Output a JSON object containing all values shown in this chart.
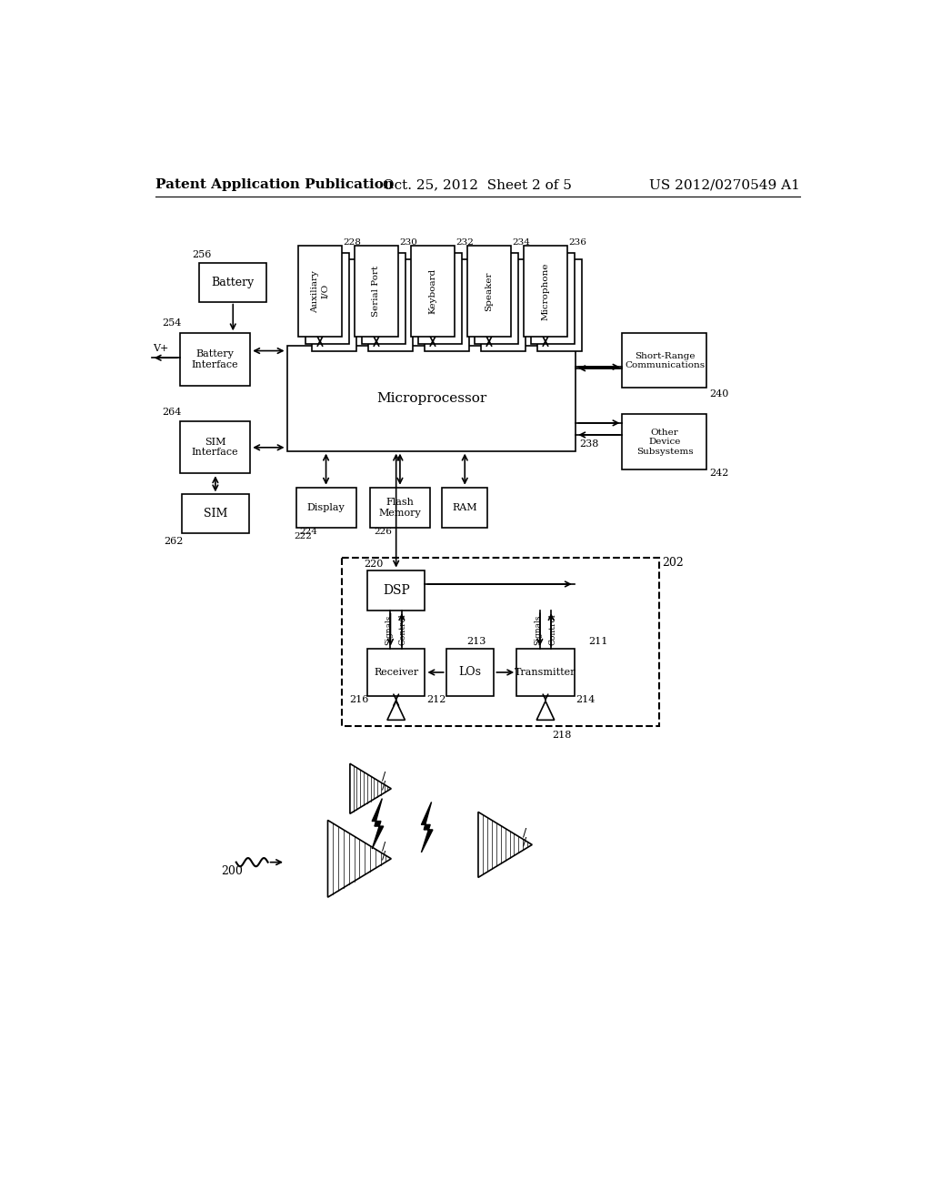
{
  "bg_color": "#ffffff",
  "header_left": "Patent Application Publication",
  "header_center": "Oct. 25, 2012  Sheet 2 of 5",
  "header_right": "US 2012/0270549 A1"
}
